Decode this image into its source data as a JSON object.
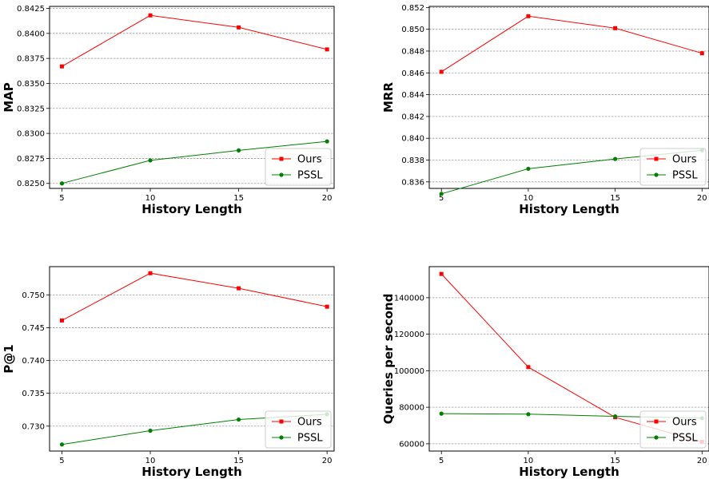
{
  "chart_data": [
    {
      "type": "line",
      "x": [
        5,
        10,
        15,
        20
      ],
      "xlabel": "History Length",
      "ylabel": "MAP",
      "ylim": [
        0.8245,
        0.8427
      ],
      "yticks": [
        0.825,
        0.8275,
        0.83,
        0.8325,
        0.835,
        0.8375,
        0.84,
        0.8425
      ],
      "ytick_labels": [
        "0.8250",
        "0.8275",
        "0.8300",
        "0.8325",
        "0.8350",
        "0.8375",
        "0.8400",
        "0.8425"
      ],
      "grid": "y",
      "legend": "lower-right",
      "series": [
        {
          "name": "Ours",
          "color": "#ff0000",
          "marker": "square",
          "values": [
            0.8367,
            0.8418,
            0.8406,
            0.8384
          ]
        },
        {
          "name": "PSSL",
          "color": "#008000",
          "marker": "circle",
          "values": [
            0.825,
            0.8273,
            0.8283,
            0.8292
          ]
        }
      ]
    },
    {
      "type": "line",
      "x": [
        5,
        10,
        15,
        20
      ],
      "xlabel": "History Length",
      "ylabel": "MRR",
      "ylim": [
        0.8354,
        0.8521
      ],
      "yticks": [
        0.836,
        0.838,
        0.84,
        0.842,
        0.844,
        0.846,
        0.848,
        0.85,
        0.852
      ],
      "ytick_labels": [
        "0.836",
        "0.838",
        "0.840",
        "0.842",
        "0.844",
        "0.846",
        "0.848",
        "0.850",
        "0.852"
      ],
      "grid": "y",
      "legend": "lower-right",
      "series": [
        {
          "name": "Ours",
          "color": "#ff0000",
          "marker": "square",
          "values": [
            0.8461,
            0.8512,
            0.8501,
            0.8478
          ]
        },
        {
          "name": "PSSL",
          "color": "#008000",
          "marker": "circle",
          "values": [
            0.8349,
            0.8372,
            0.8381,
            0.8389
          ]
        }
      ]
    },
    {
      "type": "line",
      "x": [
        5,
        10,
        15,
        20
      ],
      "xlabel": "History Length",
      "ylabel": "P@1",
      "ylim": [
        0.7262,
        0.7543
      ],
      "yticks": [
        0.73,
        0.735,
        0.74,
        0.745,
        0.75
      ],
      "ytick_labels": [
        "0.730",
        "0.735",
        "0.740",
        "0.745",
        "0.750"
      ],
      "grid": "y",
      "legend": "lower-right",
      "series": [
        {
          "name": "Ours",
          "color": "#ff0000",
          "marker": "square",
          "values": [
            0.7461,
            0.7533,
            0.751,
            0.7482
          ]
        },
        {
          "name": "PSSL",
          "color": "#008000",
          "marker": "circle",
          "values": [
            0.7272,
            0.7293,
            0.731,
            0.7318
          ]
        }
      ]
    },
    {
      "type": "line",
      "x": [
        5,
        10,
        15,
        20
      ],
      "xlabel": "History Length",
      "ylabel": "Queries per second",
      "ylim": [
        56000,
        157000
      ],
      "yticks": [
        60000,
        80000,
        100000,
        120000,
        140000
      ],
      "ytick_labels": [
        "60000",
        "80000",
        "100000",
        "120000",
        "140000"
      ],
      "grid": "y",
      "legend": "lower-right",
      "series": [
        {
          "name": "Ours",
          "color": "#ff0000",
          "marker": "square",
          "values": [
            153000,
            102000,
            74500,
            61000
          ]
        },
        {
          "name": "PSSL",
          "color": "#008000",
          "marker": "circle",
          "values": [
            76500,
            76200,
            75000,
            74000
          ]
        }
      ]
    }
  ]
}
